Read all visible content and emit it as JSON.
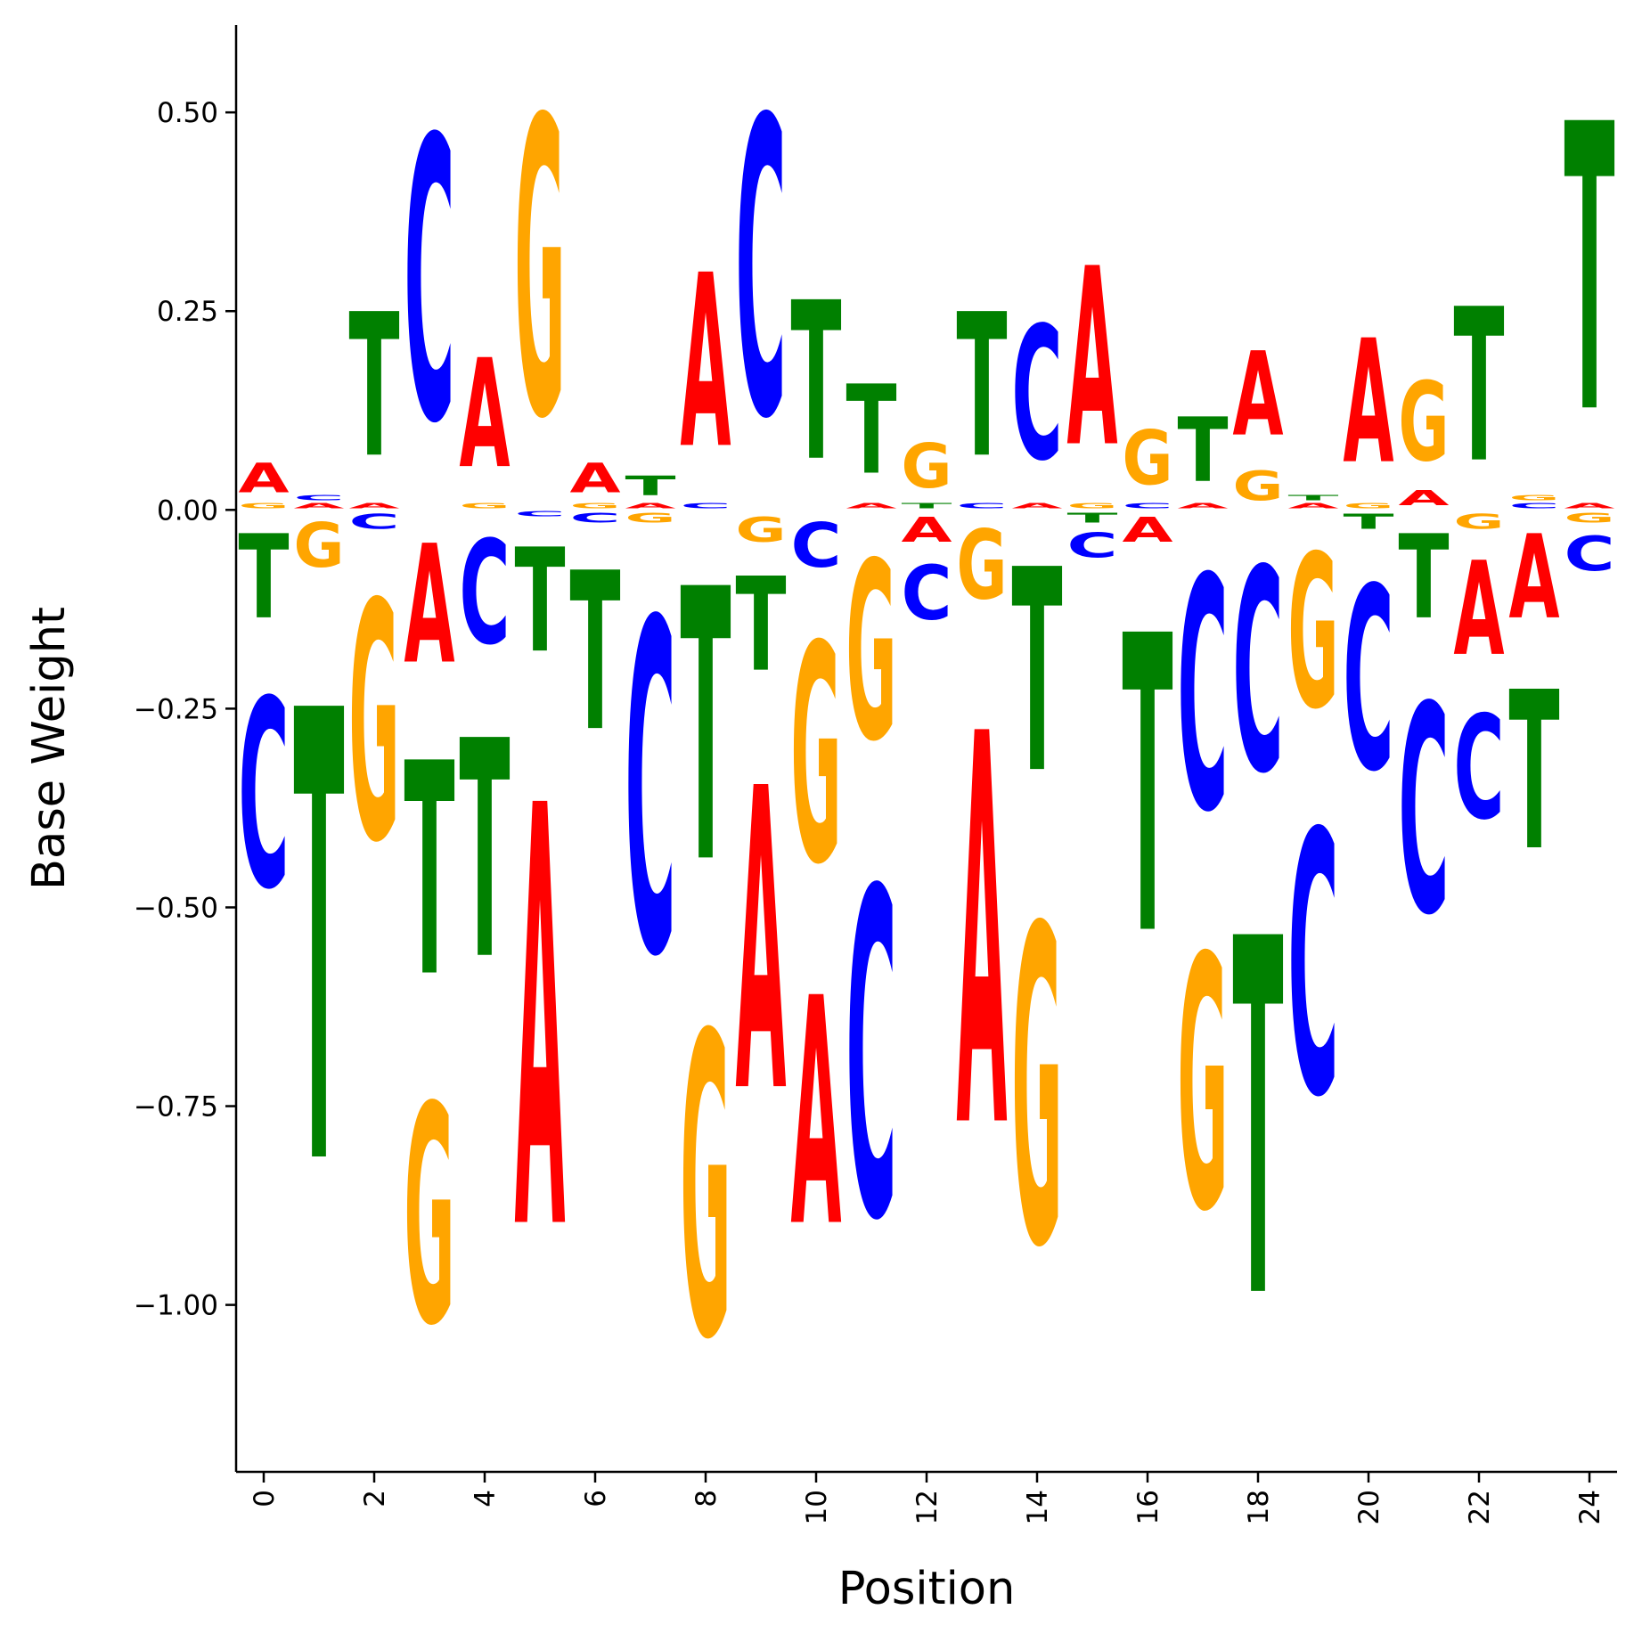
{
  "chart_data": {
    "type": "sequence-logo",
    "xlabel": "Position",
    "ylabel": "Base Weight",
    "ylim": [
      -1.21,
      0.61
    ],
    "xlim": [
      -0.5,
      24.5
    ],
    "y_ticks": [
      0.5,
      0.25,
      0.0,
      -0.25,
      -0.5,
      -0.75,
      -1.0
    ],
    "y_tick_labels": [
      "0.50",
      "0.25",
      "0.00",
      "−0.25",
      "−0.50",
      "−0.75",
      "−1.00"
    ],
    "x_ticks": [
      0,
      2,
      4,
      6,
      8,
      10,
      12,
      14,
      16,
      18,
      20,
      22,
      24
    ],
    "x_tick_labels": [
      "0",
      "2",
      "4",
      "6",
      "8",
      "10",
      "12",
      "14",
      "16",
      "18",
      "20",
      "22",
      "24"
    ],
    "colors": {
      "A": "#ff0000",
      "C": "#0000ff",
      "G": "#ffa500",
      "T": "#008000"
    },
    "weights": [
      {
        "position": 0,
        "A": 0.06,
        "C": -0.38,
        "G": 0.01,
        "T": -0.17
      },
      {
        "position": 1,
        "A": 0.01,
        "C": 0.01,
        "G": -0.09,
        "T": -0.91
      },
      {
        "position": 2,
        "A": 0.01,
        "C": -0.03,
        "G": -0.48,
        "T": 0.29
      },
      {
        "position": 3,
        "A": -0.24,
        "C": 0.57,
        "G": -0.44,
        "T": -0.43
      },
      {
        "position": 4,
        "A": 0.22,
        "C": -0.21,
        "G": 0.01,
        "T": -0.44
      },
      {
        "position": 5,
        "A": -0.85,
        "C": -0.01,
        "G": 0.6,
        "T": -0.21
      },
      {
        "position": 6,
        "A": 0.06,
        "C": -0.02,
        "G": 0.01,
        "T": -0.32
      },
      {
        "position": 7,
        "A": 0.01,
        "C": -0.67,
        "G": -0.02,
        "T": 0.04
      },
      {
        "position": 8,
        "A": 0.35,
        "C": 0.01,
        "G": -0.61,
        "T": -0.55
      },
      {
        "position": 9,
        "A": -0.61,
        "C": 0.6,
        "G": -0.05,
        "T": -0.19
      },
      {
        "position": 10,
        "A": -0.46,
        "C": -0.09,
        "G": -0.44,
        "T": 0.32
      },
      {
        "position": 11,
        "A": 0.01,
        "C": -0.66,
        "G": -0.36,
        "T": 0.18
      },
      {
        "position": 12,
        "A": -0.05,
        "C": -0.11,
        "G": 0.09,
        "T": 0.01
      },
      {
        "position": 13,
        "A": -0.79,
        "C": 0.01,
        "G": -0.14,
        "T": 0.29
      },
      {
        "position": 14,
        "A": 0.01,
        "C": 0.27,
        "G": -0.64,
        "T": -0.41
      },
      {
        "position": 15,
        "A": 0.36,
        "C": -0.05,
        "G": 0.01,
        "T": -0.02
      },
      {
        "position": 16,
        "A": -0.05,
        "C": 0.01,
        "G": 0.11,
        "T": -0.6
      },
      {
        "position": 17,
        "A": 0.01,
        "C": -0.47,
        "G": -0.51,
        "T": 0.13
      },
      {
        "position": 18,
        "A": 0.17,
        "C": -0.41,
        "G": 0.06,
        "T": -0.72
      },
      {
        "position": 19,
        "A": 0.01,
        "C": -0.53,
        "G": -0.31,
        "T": 0.01
      },
      {
        "position": 20,
        "A": 0.25,
        "C": -0.37,
        "G": 0.01,
        "T": -0.03
      },
      {
        "position": 21,
        "A": 0.03,
        "C": -0.42,
        "G": 0.16,
        "T": -0.17
      },
      {
        "position": 22,
        "A": -0.19,
        "C": -0.21,
        "G": -0.03,
        "T": 0.31
      },
      {
        "position": 23,
        "A": -0.17,
        "C": 0.01,
        "G": 0.01,
        "T": -0.32
      },
      {
        "position": 24,
        "A": 0.01,
        "C": -0.07,
        "G": -0.02,
        "T": 0.58
      }
    ]
  }
}
